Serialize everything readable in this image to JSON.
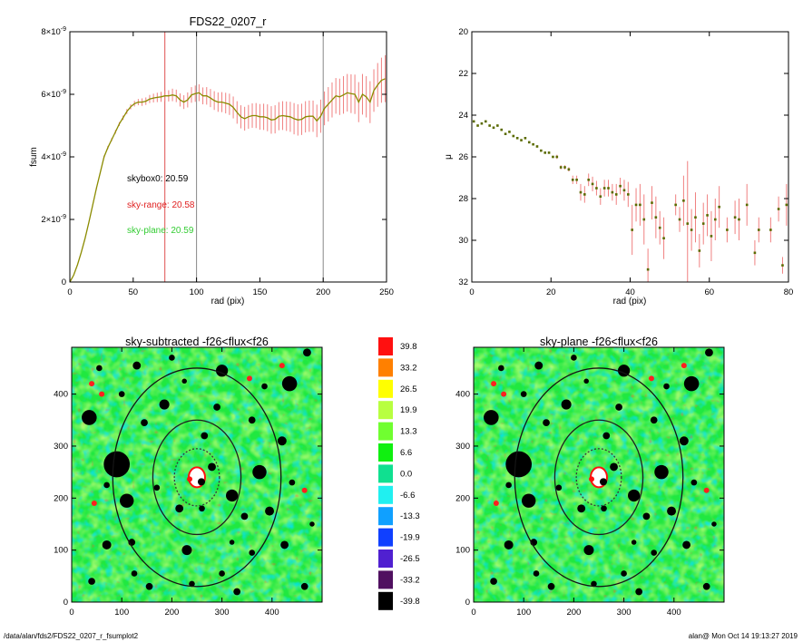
{
  "footer": {
    "path": "/data/alan/fds2/FDS22_0207_r_fsumplot2",
    "stamp": "alan@  Mon Oct 14 19:13:27 2019"
  },
  "chart_data": [
    {
      "type": "line",
      "title": "FDS22_0207_r",
      "xlabel": "rad (pix)",
      "ylabel": "fsum",
      "xlim": [
        0,
        250
      ],
      "ylim": [
        0,
        8e-09
      ],
      "xticks": [
        "0",
        "50",
        "100",
        "150",
        "200",
        "250"
      ],
      "yticks": [
        {
          "base": "0",
          "exp": ""
        },
        {
          "base": "2×10",
          "exp": "-9"
        },
        {
          "base": "4×10",
          "exp": "-9"
        },
        {
          "base": "6×10",
          "exp": "-9"
        },
        {
          "base": "8×10",
          "exp": "-9"
        }
      ],
      "vlines": [
        {
          "x": 75,
          "color": "#e05050"
        },
        {
          "x": 100,
          "color": "#888888"
        },
        {
          "x": 200,
          "color": "#888888"
        }
      ],
      "annotations": [
        {
          "text": "skybox0: 20.59",
          "color": "#000000"
        },
        {
          "text": "sky-range: 20.58",
          "color": "#e02020"
        },
        {
          "text": "sky-plane: 20.59",
          "color": "#33cc33"
        }
      ],
      "series": [
        {
          "color": "#8b8b00",
          "error_color": "#f08080",
          "x": [
            0,
            3,
            6,
            9,
            12,
            15,
            18,
            21,
            24,
            27,
            30,
            33,
            36,
            39,
            42,
            45,
            48,
            51,
            54,
            57,
            60,
            63,
            66,
            69,
            72,
            75,
            78,
            81,
            84,
            87,
            90,
            93,
            96,
            99,
            102,
            105,
            108,
            111,
            114,
            117,
            120,
            123,
            126,
            129,
            132,
            135,
            138,
            141,
            144,
            147,
            150,
            153,
            156,
            159,
            162,
            165,
            168,
            171,
            174,
            177,
            180,
            183,
            186,
            189,
            192,
            195,
            198,
            201,
            204,
            207,
            210,
            213,
            216,
            219,
            222,
            225,
            228,
            231,
            234,
            237,
            240,
            243,
            246,
            249
          ],
          "y": [
            0,
            0.22,
            0.55,
            0.95,
            1.4,
            1.9,
            2.45,
            3.0,
            3.5,
            4.0,
            4.3,
            4.55,
            4.8,
            5.05,
            5.25,
            5.45,
            5.6,
            5.7,
            5.75,
            5.75,
            5.78,
            5.85,
            5.88,
            5.9,
            5.92,
            5.95,
            5.95,
            5.98,
            5.95,
            5.82,
            5.75,
            5.82,
            5.98,
            6.02,
            6.05,
            5.95,
            5.95,
            5.88,
            5.8,
            5.75,
            5.75,
            5.72,
            5.68,
            5.58,
            5.42,
            5.28,
            5.22,
            5.28,
            5.32,
            5.32,
            5.28,
            5.28,
            5.25,
            5.18,
            5.2,
            5.3,
            5.32,
            5.3,
            5.28,
            5.22,
            5.18,
            5.2,
            5.28,
            5.3,
            5.3,
            5.15,
            5.3,
            5.55,
            5.68,
            5.82,
            5.95,
            5.92,
            5.98,
            6.05,
            6.02,
            6.0,
            5.75,
            6.0,
            5.92,
            5.75,
            6.12,
            6.3,
            6.45,
            6.5
          ],
          "err": [
            0,
            0,
            0,
            0,
            0,
            0,
            0,
            0.03,
            0.03,
            0.04,
            0.05,
            0.05,
            0.06,
            0.06,
            0.07,
            0.08,
            0.08,
            0.09,
            0.1,
            0.12,
            0.12,
            0.13,
            0.14,
            0.15,
            0.16,
            0.17,
            0.18,
            0.2,
            0.2,
            0.21,
            0.22,
            0.24,
            0.25,
            0.26,
            0.27,
            0.27,
            0.28,
            0.29,
            0.3,
            0.31,
            0.32,
            0.33,
            0.34,
            0.35,
            0.36,
            0.37,
            0.38,
            0.38,
            0.39,
            0.4,
            0.41,
            0.42,
            0.43,
            0.44,
            0.45,
            0.45,
            0.46,
            0.47,
            0.48,
            0.5,
            0.5,
            0.5,
            0.5,
            0.5,
            0.5,
            0.52,
            0.53,
            0.54,
            0.55,
            0.56,
            0.57,
            0.58,
            0.6,
            0.6,
            0.62,
            0.63,
            0.64,
            0.65,
            0.66,
            0.67,
            0.68,
            0.7,
            0.72,
            0.75
          ]
        }
      ]
    },
    {
      "type": "scatter",
      "xlabel": "rad (pix)",
      "ylabel": "μ",
      "xlim": [
        0,
        80
      ],
      "ylim": [
        32,
        20
      ],
      "xticks": [
        "0",
        "20",
        "40",
        "60",
        "80"
      ],
      "yticks": [
        "20",
        "22",
        "24",
        "26",
        "28",
        "30",
        "32"
      ],
      "error_color": "#f08080",
      "points": [
        {
          "x": 0.5,
          "y": 24.3,
          "e": 0.05
        },
        {
          "x": 1.5,
          "y": 24.5,
          "e": 0.05
        },
        {
          "x": 2.5,
          "y": 24.4,
          "e": 0.05
        },
        {
          "x": 3.5,
          "y": 24.3,
          "e": 0.05
        },
        {
          "x": 4.5,
          "y": 24.5,
          "e": 0.05
        },
        {
          "x": 5.5,
          "y": 24.6,
          "e": 0.05
        },
        {
          "x": 6.5,
          "y": 24.5,
          "e": 0.05
        },
        {
          "x": 7.5,
          "y": 24.7,
          "e": 0.05
        },
        {
          "x": 8.5,
          "y": 24.9,
          "e": 0.05
        },
        {
          "x": 9.5,
          "y": 24.8,
          "e": 0.05
        },
        {
          "x": 10.5,
          "y": 25.0,
          "e": 0.05
        },
        {
          "x": 11.5,
          "y": 25.1,
          "e": 0.05
        },
        {
          "x": 12.5,
          "y": 25.2,
          "e": 0.05
        },
        {
          "x": 13.5,
          "y": 25.1,
          "e": 0.05
        },
        {
          "x": 14.5,
          "y": 25.3,
          "e": 0.05
        },
        {
          "x": 15.5,
          "y": 25.4,
          "e": 0.05
        },
        {
          "x": 16.5,
          "y": 25.5,
          "e": 0.05
        },
        {
          "x": 17.5,
          "y": 25.7,
          "e": 0.05
        },
        {
          "x": 18.5,
          "y": 25.8,
          "e": 0.05
        },
        {
          "x": 19.5,
          "y": 25.8,
          "e": 0.05
        },
        {
          "x": 20.5,
          "y": 26.0,
          "e": 0.05
        },
        {
          "x": 21.5,
          "y": 26.0,
          "e": 0.1
        },
        {
          "x": 22.5,
          "y": 26.5,
          "e": 0.1
        },
        {
          "x": 23.5,
          "y": 26.5,
          "e": 0.1
        },
        {
          "x": 24.5,
          "y": 26.6,
          "e": 0.1
        },
        {
          "x": 25.5,
          "y": 27.1,
          "e": 0.2
        },
        {
          "x": 26.5,
          "y": 27.1,
          "e": 0.2
        },
        {
          "x": 27.5,
          "y": 27.7,
          "e": 0.4
        },
        {
          "x": 28.5,
          "y": 27.8,
          "e": 0.4
        },
        {
          "x": 29.5,
          "y": 27.1,
          "e": 0.3
        },
        {
          "x": 30.5,
          "y": 27.3,
          "e": 0.35
        },
        {
          "x": 31.5,
          "y": 27.5,
          "e": 0.35
        },
        {
          "x": 32.5,
          "y": 27.9,
          "e": 0.4
        },
        {
          "x": 33.5,
          "y": 27.5,
          "e": 0.4
        },
        {
          "x": 34.5,
          "y": 27.5,
          "e": 0.4
        },
        {
          "x": 35.5,
          "y": 27.7,
          "e": 0.4
        },
        {
          "x": 36.5,
          "y": 27.8,
          "e": 0.5
        },
        {
          "x": 37.5,
          "y": 27.4,
          "e": 0.4
        },
        {
          "x": 38.5,
          "y": 27.6,
          "e": 0.5
        },
        {
          "x": 39.5,
          "y": 27.8,
          "e": 0.6
        },
        {
          "x": 40.5,
          "y": 29.5,
          "e": 1.2
        },
        {
          "x": 41.5,
          "y": 28.3,
          "e": 0.8
        },
        {
          "x": 42.5,
          "y": 28.3,
          "e": 1.0
        },
        {
          "x": 43.5,
          "y": 29.0,
          "e": 1.2
        },
        {
          "x": 44.5,
          "y": 31.4,
          "e": 1.0
        },
        {
          "x": 45.5,
          "y": 28.2,
          "e": 0.8
        },
        {
          "x": 46.5,
          "y": 28.9,
          "e": 1.0
        },
        {
          "x": 47.5,
          "y": 29.4,
          "e": 0.8
        },
        {
          "x": 48.5,
          "y": 29.9,
          "e": 1.0
        },
        {
          "x": 51.5,
          "y": 28.3,
          "e": 0.5
        },
        {
          "x": 52.5,
          "y": 29.0,
          "e": 0.6
        },
        {
          "x": 53.5,
          "y": 28.1,
          "e": 1.2
        },
        {
          "x": 54.5,
          "y": 29.2,
          "e": 3.0
        },
        {
          "x": 55.5,
          "y": 29.5,
          "e": 1.0
        },
        {
          "x": 56.5,
          "y": 28.9,
          "e": 1.2
        },
        {
          "x": 57.5,
          "y": 30.5,
          "e": 0.8
        },
        {
          "x": 58.5,
          "y": 29.2,
          "e": 1.0
        },
        {
          "x": 59.5,
          "y": 28.8,
          "e": 1.0
        },
        {
          "x": 60.5,
          "y": 29.8,
          "e": 1.2
        },
        {
          "x": 61.5,
          "y": 29.0,
          "e": 1.0
        },
        {
          "x": 62.5,
          "y": 28.4,
          "e": 1.0
        },
        {
          "x": 64.5,
          "y": 29.5,
          "e": 0.6
        },
        {
          "x": 66.5,
          "y": 28.9,
          "e": 0.8
        },
        {
          "x": 67.5,
          "y": 29.0,
          "e": 1.0
        },
        {
          "x": 69.5,
          "y": 28.3,
          "e": 1.0
        },
        {
          "x": 71.5,
          "y": 30.6,
          "e": 0.6
        },
        {
          "x": 72.5,
          "y": 29.5,
          "e": 0.6
        },
        {
          "x": 75.5,
          "y": 29.5,
          "e": 0.6
        },
        {
          "x": 77.5,
          "y": 28.5,
          "e": 0.6
        },
        {
          "x": 78.5,
          "y": 31.2,
          "e": 0.4
        },
        {
          "x": 79.5,
          "y": 28.3,
          "e": 1.0
        }
      ]
    },
    {
      "type": "heatmap",
      "title": "sky-subtracted -f26<flux<f26",
      "xlim": [
        0,
        500
      ],
      "ylim": [
        0,
        490
      ],
      "xticks": [
        "0",
        "100",
        "200",
        "300",
        "400"
      ],
      "yticks": [
        "0",
        "100",
        "200",
        "300",
        "400"
      ],
      "center": [
        250,
        240
      ],
      "ellipses": [
        {
          "rx": 45,
          "ry": 55,
          "color": "#3a3a3a",
          "dashed": true
        },
        {
          "rx": 88,
          "ry": 110,
          "color": "#1e1e1e",
          "dashed": false
        },
        {
          "rx": 168,
          "ry": 210,
          "color": "#141414",
          "dashed": false
        }
      ],
      "masked_sources": [
        {
          "x": 90,
          "y": 265,
          "r": 26
        },
        {
          "x": 435,
          "y": 420,
          "r": 15
        },
        {
          "x": 35,
          "y": 355,
          "r": 15
        },
        {
          "x": 110,
          "y": 195,
          "r": 14
        },
        {
          "x": 375,
          "y": 250,
          "r": 14
        },
        {
          "x": 300,
          "y": 445,
          "r": 12
        },
        {
          "x": 230,
          "y": 100,
          "r": 10
        },
        {
          "x": 320,
          "y": 205,
          "r": 12
        },
        {
          "x": 185,
          "y": 380,
          "r": 10
        },
        {
          "x": 280,
          "y": 260,
          "r": 8
        },
        {
          "x": 420,
          "y": 310,
          "r": 9
        },
        {
          "x": 70,
          "y": 110,
          "r": 9
        },
        {
          "x": 395,
          "y": 175,
          "r": 9
        },
        {
          "x": 130,
          "y": 455,
          "r": 8
        },
        {
          "x": 470,
          "y": 480,
          "r": 8
        },
        {
          "x": 265,
          "y": 320,
          "r": 7
        },
        {
          "x": 345,
          "y": 165,
          "r": 7
        },
        {
          "x": 215,
          "y": 180,
          "r": 8
        },
        {
          "x": 145,
          "y": 345,
          "r": 7
        },
        {
          "x": 425,
          "y": 110,
          "r": 8
        },
        {
          "x": 40,
          "y": 40,
          "r": 7
        },
        {
          "x": 330,
          "y": 20,
          "r": 7
        },
        {
          "x": 155,
          "y": 30,
          "r": 7
        },
        {
          "x": 120,
          "y": 115,
          "r": 7
        },
        {
          "x": 290,
          "y": 375,
          "r": 7
        },
        {
          "x": 360,
          "y": 350,
          "r": 7
        },
        {
          "x": 260,
          "y": 180,
          "r": 6
        },
        {
          "x": 465,
          "y": 30,
          "r": 7
        },
        {
          "x": 70,
          "y": 225,
          "r": 6
        },
        {
          "x": 300,
          "y": 55,
          "r": 6
        },
        {
          "x": 360,
          "y": 95,
          "r": 6
        },
        {
          "x": 55,
          "y": 450,
          "r": 6
        },
        {
          "x": 100,
          "y": 400,
          "r": 6
        },
        {
          "x": 200,
          "y": 470,
          "r": 6
        },
        {
          "x": 385,
          "y": 415,
          "r": 6
        },
        {
          "x": 240,
          "y": 35,
          "r": 6
        },
        {
          "x": 125,
          "y": 55,
          "r": 6
        },
        {
          "x": 440,
          "y": 230,
          "r": 6
        },
        {
          "x": 170,
          "y": 220,
          "r": 6
        },
        {
          "x": 225,
          "y": 425,
          "r": 5
        },
        {
          "x": 320,
          "y": 115,
          "r": 5
        },
        {
          "x": 480,
          "y": 150,
          "r": 5
        }
      ],
      "red_sources": [
        {
          "x": 420,
          "y": 455
        },
        {
          "x": 40,
          "y": 420
        },
        {
          "x": 355,
          "y": 430
        },
        {
          "x": 60,
          "y": 400
        },
        {
          "x": 465,
          "y": 215
        },
        {
          "x": 45,
          "y": 190
        }
      ]
    },
    {
      "type": "heatmap",
      "title": "sky-plane -f26<flux<f26",
      "xlim": [
        0,
        500
      ],
      "ylim": [
        0,
        490
      ],
      "xticks": [
        "0",
        "100",
        "200",
        "300",
        "400"
      ],
      "yticks": [
        "0",
        "100",
        "200",
        "300",
        "400"
      ]
    }
  ],
  "colorbar": {
    "labels": [
      "39.8",
      "33.2",
      "26.5",
      "19.9",
      "13.3",
      "6.6",
      "0.0",
      "-6.6",
      "-13.3",
      "-19.9",
      "-26.5",
      "-33.2",
      "-39.8"
    ],
    "colors": [
      "#ff1010",
      "#ff8000",
      "#ffff00",
      "#b8ff40",
      "#70ff30",
      "#10f010",
      "#10e090",
      "#20f0f0",
      "#10a0ff",
      "#1040ff",
      "#5020d0",
      "#501060",
      "#000000"
    ]
  }
}
